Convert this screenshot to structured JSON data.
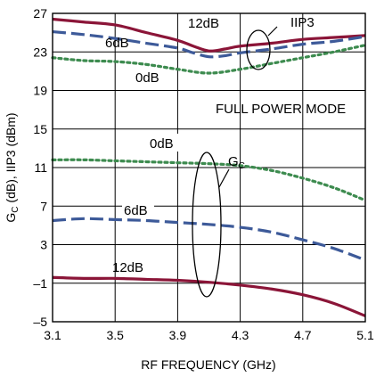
{
  "chart_data": {
    "type": "line",
    "title": "",
    "xlabel": "RF FREQUENCY (GHz)",
    "ylabel": "G_C (dB), IIP3 (dBm)",
    "ylabel_parts": {
      "main": "G",
      "sub": "C",
      "rest": " (dB), IIP3 (dBm)"
    },
    "xlim": [
      3.1,
      5.1
    ],
    "ylim": [
      -5,
      27
    ],
    "xticks": [
      3.1,
      3.5,
      3.9,
      4.3,
      4.7,
      5.1
    ],
    "xtick_labels": [
      "3.1",
      "3.5",
      "3.9",
      "4.3",
      "4.7",
      "5.1"
    ],
    "yticks": [
      -5,
      -1,
      3,
      7,
      11,
      15,
      19,
      23,
      27
    ],
    "ytick_labels": [
      "–5",
      "–1",
      "3",
      "7",
      "11",
      "15",
      "19",
      "23",
      "27"
    ],
    "grid": true,
    "colors": {
      "red": "#8b1538",
      "blue": "#3d5a99",
      "green": "#3d8b4f"
    },
    "annotations": {
      "mode": "FULL POWER MODE",
      "iip3": "IIP3",
      "gc_main": "G",
      "gc_sub": "C",
      "iip3_12db": "12dB",
      "iip3_6db": "6dB",
      "iip3_0db": "0dB",
      "gc_0db": "0dB",
      "gc_6db": "6dB",
      "gc_12db": "12dB"
    },
    "series": [
      {
        "key": "iip3_12",
        "color": "red",
        "dash": "solid",
        "x": [
          3.1,
          3.3,
          3.5,
          3.7,
          3.9,
          4.0,
          4.1,
          4.2,
          4.3,
          4.5,
          4.7,
          4.9,
          5.1
        ],
        "y": [
          26.4,
          26.1,
          25.8,
          25.0,
          24.2,
          23.6,
          23.1,
          23.3,
          23.6,
          23.9,
          24.3,
          24.5,
          24.7
        ]
      },
      {
        "key": "iip3_6",
        "color": "blue",
        "dash": "long",
        "x": [
          3.1,
          3.3,
          3.5,
          3.7,
          3.9,
          4.0,
          4.1,
          4.2,
          4.3,
          4.5,
          4.7,
          4.9,
          5.1
        ],
        "y": [
          25.1,
          24.8,
          24.4,
          23.9,
          23.4,
          22.9,
          22.5,
          22.6,
          22.9,
          23.3,
          23.8,
          24.1,
          24.6
        ]
      },
      {
        "key": "iip3_0",
        "color": "green",
        "dash": "dot",
        "x": [
          3.1,
          3.3,
          3.5,
          3.7,
          3.9,
          4.1,
          4.3,
          4.5,
          4.7,
          4.9,
          5.1
        ],
        "y": [
          22.4,
          22.1,
          22.0,
          21.7,
          21.2,
          20.8,
          21.2,
          21.8,
          22.4,
          23.0,
          23.7
        ]
      },
      {
        "key": "gc_0",
        "color": "green",
        "dash": "dot",
        "x": [
          3.1,
          3.3,
          3.5,
          3.7,
          3.9,
          4.1,
          4.3,
          4.5,
          4.7,
          4.9,
          5.1
        ],
        "y": [
          11.8,
          11.8,
          11.7,
          11.6,
          11.5,
          11.4,
          11.2,
          10.7,
          9.9,
          8.9,
          7.6
        ]
      },
      {
        "key": "gc_6",
        "color": "blue",
        "dash": "long",
        "x": [
          3.1,
          3.3,
          3.5,
          3.7,
          3.9,
          4.1,
          4.3,
          4.5,
          4.7,
          4.9,
          5.1
        ],
        "y": [
          5.5,
          5.7,
          5.6,
          5.5,
          5.3,
          5.1,
          4.8,
          4.3,
          3.5,
          2.6,
          1.4
        ]
      },
      {
        "key": "gc_12",
        "color": "red",
        "dash": "solid",
        "x": [
          3.1,
          3.3,
          3.5,
          3.7,
          3.9,
          4.1,
          4.3,
          4.5,
          4.7,
          4.9,
          5.1
        ],
        "y": [
          -0.4,
          -0.5,
          -0.5,
          -0.6,
          -0.7,
          -0.9,
          -1.2,
          -1.6,
          -2.2,
          -3.1,
          -4.4
        ]
      }
    ]
  }
}
